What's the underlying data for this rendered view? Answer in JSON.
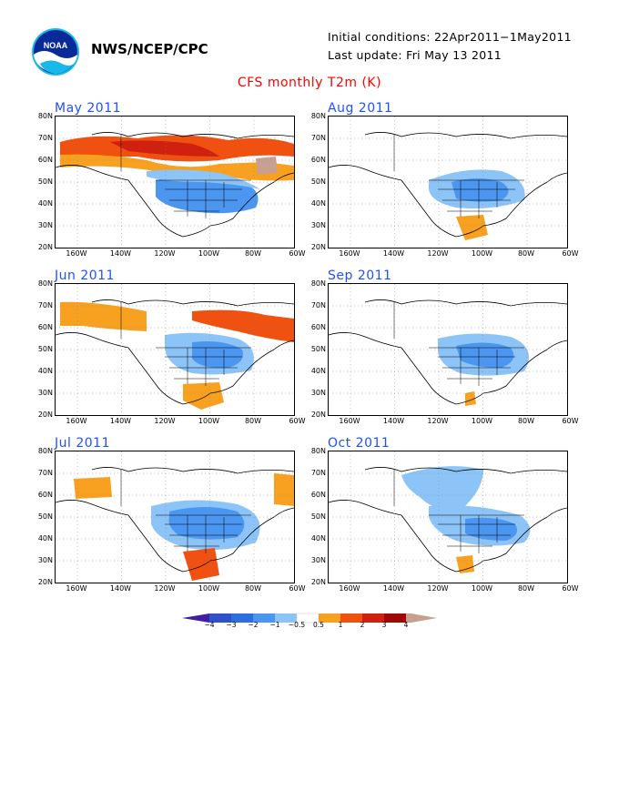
{
  "header": {
    "org": "NWS/NCEP/CPC",
    "logo_text": "NOAA",
    "initial_conditions": "Initial conditions: 22Apr2011−1May2011",
    "last_update": "Last update: Fri May 13 2011",
    "title": "CFS monthly T2m (K)"
  },
  "axes": {
    "lat_labels": [
      "80N",
      "70N",
      "60N",
      "50N",
      "40N",
      "30N",
      "20N"
    ],
    "lon_labels": [
      "160W",
      "140W",
      "120W",
      "100W",
      "80W",
      "60W"
    ]
  },
  "panels": [
    {
      "id": "may",
      "title": "May 2011"
    },
    {
      "id": "aug",
      "title": "Aug 2011"
    },
    {
      "id": "jun",
      "title": "Jun 2011"
    },
    {
      "id": "sep",
      "title": "Sep 2011"
    },
    {
      "id": "jul",
      "title": "Jul 2011"
    },
    {
      "id": "oct",
      "title": "Oct 2011"
    }
  ],
  "colorbar": {
    "labels": [
      "−4",
      "−3",
      "−2",
      "−1",
      "−0.5",
      "0.5",
      "1",
      "2",
      "3",
      "4"
    ],
    "colors": {
      "below_-4": "#4020a0",
      "-4_-3": "#3050c8",
      "-3_-2": "#2a6ee0",
      "-2_-1": "#4a96f0",
      "-1_-0.5": "#8cc4f8",
      "-0.5_0.5": "#ffffff",
      "0.5_1": "#f8a020",
      "1_2": "#f05010",
      "2_3": "#d02010",
      "3_4": "#a00808",
      "above_4": "#c8a090"
    }
  }
}
